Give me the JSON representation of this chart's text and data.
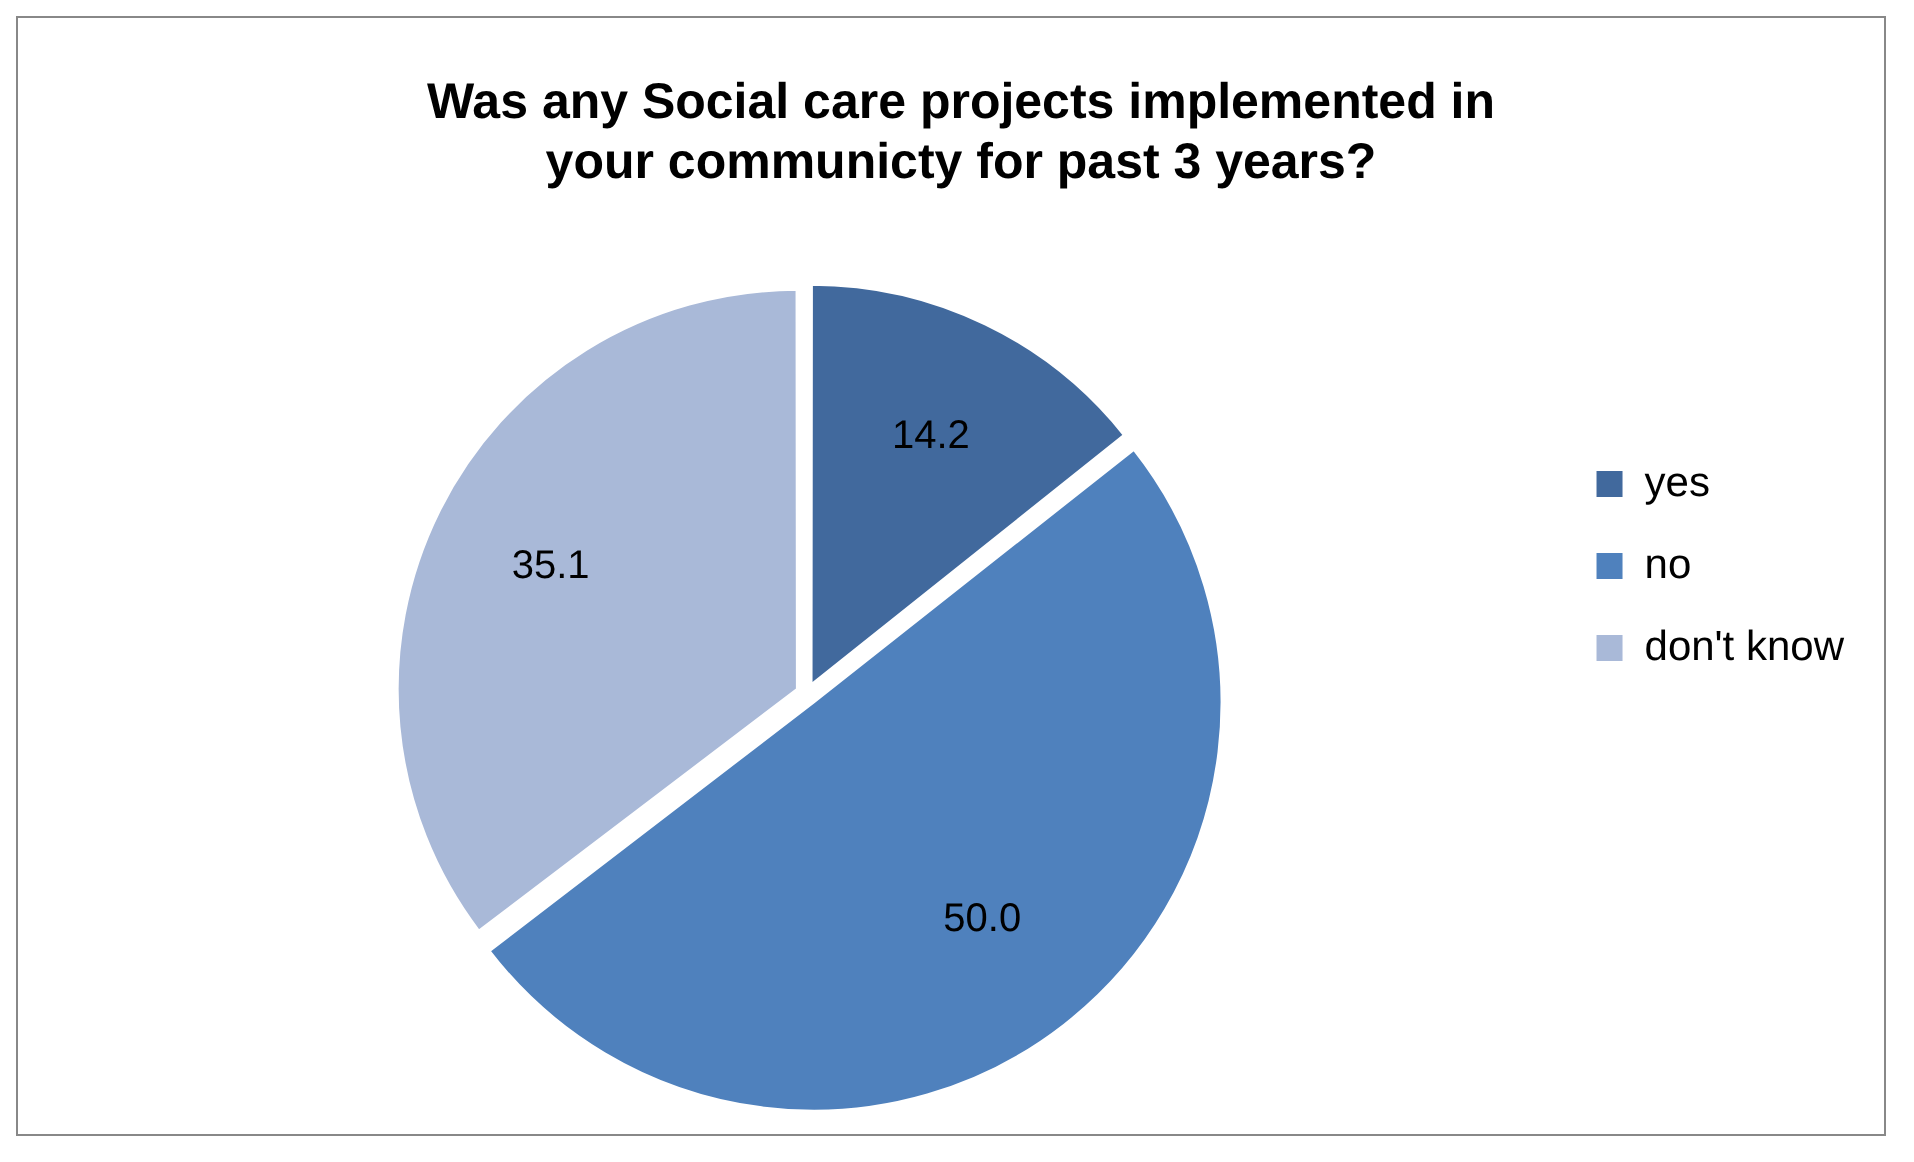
{
  "chart_data": {
    "type": "pie",
    "title": "Was any Social care projects implemented in your communicty for past 3 years?",
    "categories": [
      "yes",
      "no",
      "don't know"
    ],
    "values": [
      14.2,
      50.0,
      35.1
    ],
    "value_labels": [
      "14.2",
      "50.0",
      "35.1"
    ],
    "colors": [
      "#41699d",
      "#4f81bd",
      "#a9b9d8"
    ],
    "legend": "right"
  }
}
